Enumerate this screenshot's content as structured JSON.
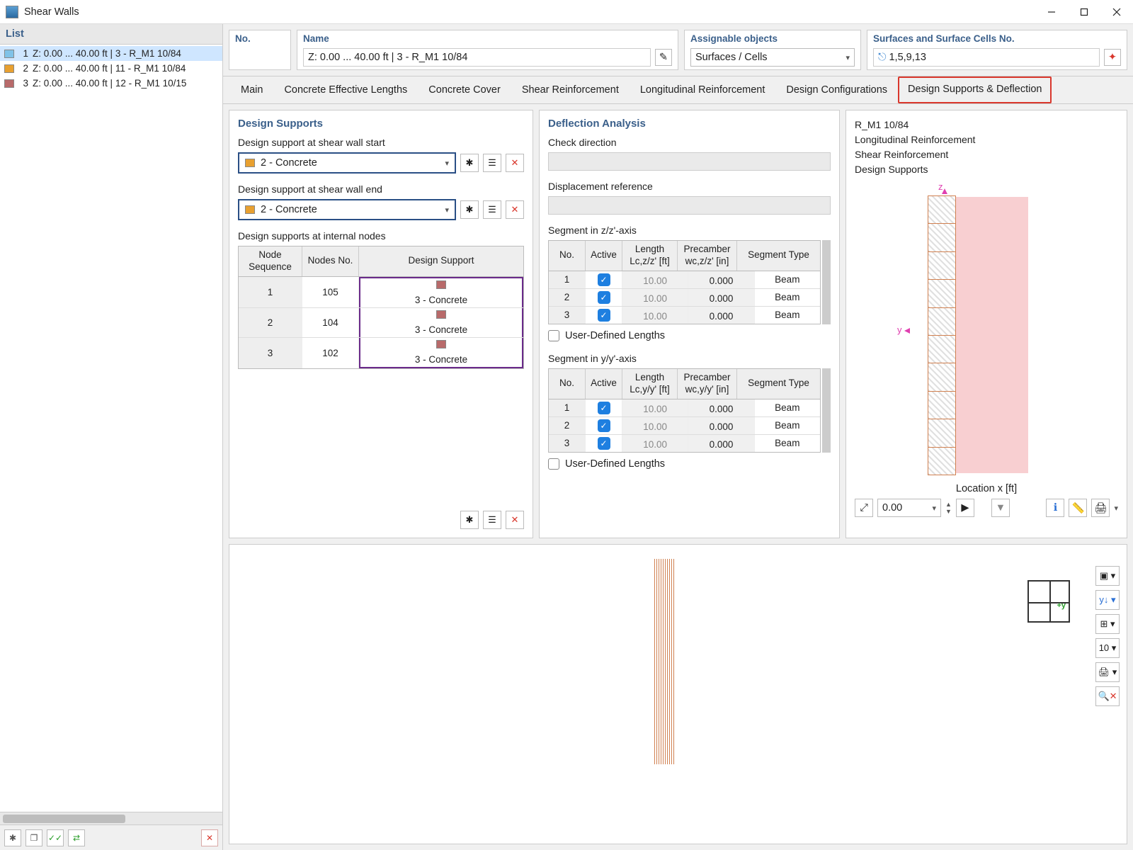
{
  "window": {
    "title": "Shear Walls"
  },
  "list": {
    "header": "List",
    "items": [
      {
        "n": "1",
        "label": "Z: 0.00 ... 40.00 ft | 3 - R_M1 10/84",
        "color": "#7fc2e8",
        "selected": true
      },
      {
        "n": "2",
        "label": "Z: 0.00 ... 40.00 ft | 11 - R_M1 10/84",
        "color": "#e8a030",
        "selected": false
      },
      {
        "n": "3",
        "label": "Z: 0.00 ... 40.00 ft | 12 - R_M1 10/15",
        "color": "#b86a6a",
        "selected": false
      }
    ]
  },
  "header": {
    "no_label": "No.",
    "name_label": "Name",
    "name_value": "Z: 0.00 ... 40.00  ft | 3 - R_M1 10/84",
    "assign_label": "Assignable objects",
    "assign_value": "Surfaces / Cells",
    "surf_label": "Surfaces and Surface Cells No.",
    "surf_value": "1,5,9,13"
  },
  "tabs": {
    "items": [
      "Main",
      "Concrete Effective Lengths",
      "Concrete Cover",
      "Shear Reinforcement",
      "Longitudinal Reinforcement",
      "Design Configurations",
      "Design Supports & Deflection"
    ],
    "highlight_index": 6
  },
  "ds": {
    "title": "Design Supports",
    "start_label": "Design support at shear wall start",
    "start_value": "2 - Concrete",
    "end_label": "Design support at shear wall end",
    "end_value": "2 - Concrete",
    "internal_label": "Design supports at internal nodes",
    "cols": {
      "seq": "Node Sequence",
      "no": "Nodes No.",
      "sup": "Design Support"
    },
    "rows": [
      {
        "seq": "1",
        "no": "105",
        "sup": "3 - Concrete",
        "color": "#b86a6a"
      },
      {
        "seq": "2",
        "no": "104",
        "sup": "3 - Concrete",
        "color": "#b86a6a"
      },
      {
        "seq": "3",
        "no": "102",
        "sup": "3 - Concrete",
        "color": "#b86a6a"
      }
    ]
  },
  "da": {
    "title": "Deflection Analysis",
    "check_dir": "Check direction",
    "disp_ref": "Displacement reference",
    "seg_z_title": "Segment in z/z'-axis",
    "seg_y_title": "Segment in y/y'-axis",
    "user_def": "User-Defined Lengths",
    "cols": {
      "no": "No.",
      "active": "Active",
      "len_z": "Length\nLc,z/z' [ft]",
      "pre_z": "Precamber\nwc,z/z' [in]",
      "len_y": "Length\nLc,y/y' [ft]",
      "pre_y": "Precamber\nwc,y/y' [in]",
      "type": "Segment Type"
    },
    "rows_z": [
      {
        "no": "1",
        "len": "10.00",
        "pre": "0.000",
        "type": "Beam"
      },
      {
        "no": "2",
        "len": "10.00",
        "pre": "0.000",
        "type": "Beam"
      },
      {
        "no": "3",
        "len": "10.00",
        "pre": "0.000",
        "type": "Beam"
      }
    ],
    "rows_y": [
      {
        "no": "1",
        "len": "10.00",
        "pre": "0.000",
        "type": "Beam"
      },
      {
        "no": "2",
        "len": "10.00",
        "pre": "0.000",
        "type": "Beam"
      },
      {
        "no": "3",
        "len": "10.00",
        "pre": "0.000",
        "type": "Beam"
      }
    ]
  },
  "preview": {
    "lines": [
      "R_M1 10/84",
      "Longitudinal Reinforcement",
      "Shear Reinforcement",
      "Design Supports"
    ],
    "loc_label": "Location x [ft]",
    "loc_value": "0.00"
  },
  "colors": {
    "combo_swatch": "#e8a030"
  }
}
